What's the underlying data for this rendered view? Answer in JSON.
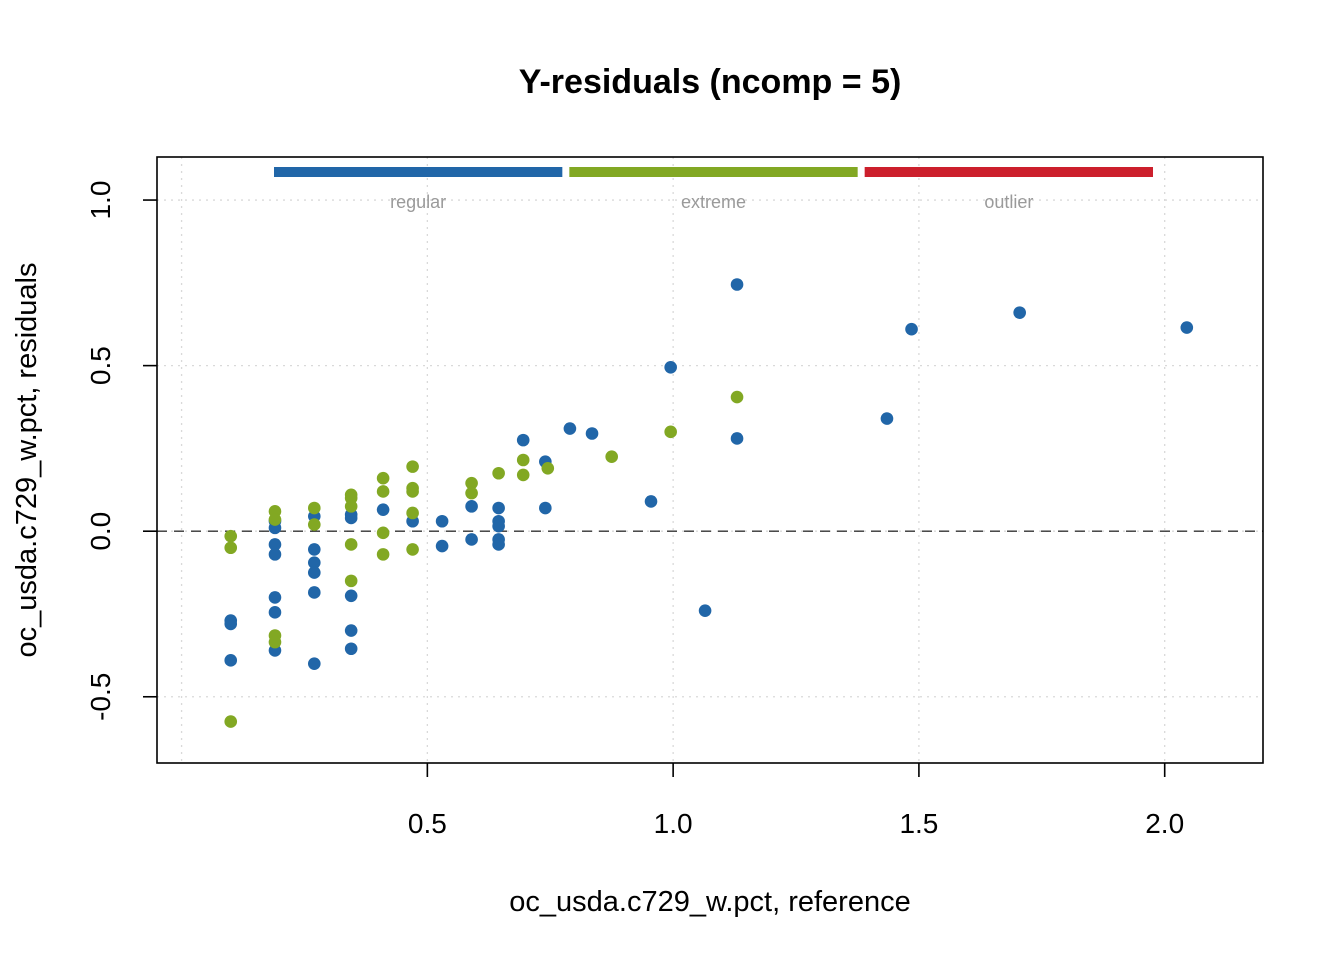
{
  "chart_data": {
    "type": "scatter",
    "title": "Y-residuals (ncomp = 5)",
    "xlabel": "oc_usda.c729_w.pct, reference",
    "ylabel": "oc_usda.c729_w.pct, residuals",
    "xlim": [
      -0.05,
      2.2
    ],
    "ylim": [
      -0.7,
      1.13
    ],
    "xticks": [
      0.5,
      1.0,
      1.5,
      2.0
    ],
    "xtick_labels": [
      "0.5",
      "1.0",
      "1.5",
      "2.0"
    ],
    "yticks": [
      -0.5,
      0.0,
      0.5,
      1.0
    ],
    "ytick_labels": [
      "-0.5",
      "0.0",
      "0.5",
      "1.0"
    ],
    "grid": true,
    "reference_line_y": 0,
    "legend_position": "top",
    "series": [
      {
        "name": "regular",
        "color": "#2166a8",
        "points": [
          [
            0.1,
            -0.27
          ],
          [
            0.1,
            -0.28
          ],
          [
            0.1,
            -0.39
          ],
          [
            0.19,
            0.03
          ],
          [
            0.19,
            0.01
          ],
          [
            0.19,
            -0.04
          ],
          [
            0.19,
            -0.07
          ],
          [
            0.19,
            -0.2
          ],
          [
            0.19,
            -0.245
          ],
          [
            0.19,
            -0.36
          ],
          [
            0.27,
            0.045
          ],
          [
            0.27,
            -0.055
          ],
          [
            0.27,
            -0.095
          ],
          [
            0.27,
            -0.125
          ],
          [
            0.27,
            -0.185
          ],
          [
            0.27,
            -0.4
          ],
          [
            0.345,
            0.05
          ],
          [
            0.345,
            0.04
          ],
          [
            0.345,
            -0.195
          ],
          [
            0.345,
            -0.3
          ],
          [
            0.345,
            -0.355
          ],
          [
            0.41,
            0.065
          ],
          [
            0.47,
            0.03
          ],
          [
            0.53,
            0.03
          ],
          [
            0.53,
            -0.045
          ],
          [
            0.59,
            0.075
          ],
          [
            0.59,
            -0.025
          ],
          [
            0.645,
            0.07
          ],
          [
            0.645,
            0.03
          ],
          [
            0.645,
            0.015
          ],
          [
            0.645,
            -0.025
          ],
          [
            0.645,
            -0.04
          ],
          [
            0.695,
            0.275
          ],
          [
            0.74,
            0.21
          ],
          [
            0.74,
            0.07
          ],
          [
            0.79,
            0.31
          ],
          [
            0.835,
            0.295
          ],
          [
            0.955,
            0.09
          ],
          [
            0.995,
            0.495
          ],
          [
            1.065,
            -0.24
          ],
          [
            1.13,
            0.745
          ],
          [
            1.13,
            0.28
          ],
          [
            1.435,
            0.34
          ],
          [
            1.485,
            0.61
          ],
          [
            1.705,
            0.66
          ],
          [
            2.045,
            0.615
          ]
        ]
      },
      {
        "name": "extreme",
        "color": "#82a823",
        "points": [
          [
            0.1,
            -0.015
          ],
          [
            0.1,
            -0.05
          ],
          [
            0.1,
            -0.575
          ],
          [
            0.19,
            0.06
          ],
          [
            0.19,
            0.035
          ],
          [
            0.19,
            -0.315
          ],
          [
            0.19,
            -0.335
          ],
          [
            0.27,
            0.07
          ],
          [
            0.27,
            0.02
          ],
          [
            0.345,
            0.11
          ],
          [
            0.345,
            0.1
          ],
          [
            0.345,
            0.075
          ],
          [
            0.345,
            -0.04
          ],
          [
            0.345,
            -0.15
          ],
          [
            0.41,
            0.16
          ],
          [
            0.41,
            0.12
          ],
          [
            0.41,
            -0.005
          ],
          [
            0.41,
            -0.07
          ],
          [
            0.47,
            0.195
          ],
          [
            0.47,
            0.13
          ],
          [
            0.47,
            0.12
          ],
          [
            0.47,
            0.055
          ],
          [
            0.47,
            -0.055
          ],
          [
            0.59,
            0.145
          ],
          [
            0.59,
            0.115
          ],
          [
            0.645,
            0.175
          ],
          [
            0.695,
            0.215
          ],
          [
            0.695,
            0.17
          ],
          [
            0.745,
            0.19
          ],
          [
            0.875,
            0.225
          ],
          [
            0.995,
            0.3
          ],
          [
            1.13,
            0.405
          ]
        ]
      },
      {
        "name": "outlier",
        "color": "#cc1f2c",
        "points": []
      }
    ]
  }
}
